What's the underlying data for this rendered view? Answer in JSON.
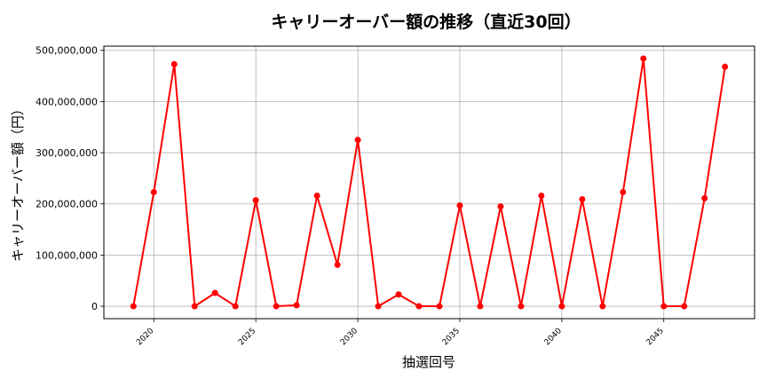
{
  "chart_data": {
    "type": "line",
    "title": "キャリーオーバー額の推移（直近30回）",
    "xlabel": "抽選回号",
    "ylabel": "キャリーオーバー額（円）",
    "x": [
      2019,
      2020,
      2021,
      2022,
      2023,
      2024,
      2025,
      2026,
      2027,
      2028,
      2029,
      2030,
      2031,
      2032,
      2033,
      2034,
      2035,
      2036,
      2037,
      2038,
      2039,
      2040,
      2041,
      2042,
      2043,
      2044,
      2045,
      2046,
      2047,
      2048
    ],
    "series": [
      {
        "color": "#ff0000",
        "values": [
          0,
          223000000,
          473000000,
          0,
          26000000,
          0,
          207000000,
          0,
          2000000,
          216000000,
          81000000,
          325000000,
          0,
          23000000,
          0,
          0,
          197000000,
          0,
          195000000,
          0,
          216000000,
          0,
          209000000,
          0,
          223000000,
          484000000,
          0,
          0,
          211000000,
          468000000
        ]
      }
    ],
    "xticks": [
      2020,
      2025,
      2030,
      2035,
      2040,
      2045
    ],
    "xtick_labels": [
      "2020",
      "2025",
      "2030",
      "2035",
      "2040",
      "2045"
    ],
    "yticks": [
      0,
      100000000,
      200000000,
      300000000,
      400000000,
      500000000
    ],
    "ytick_labels": [
      "0",
      "100,000,000",
      "200,000,000",
      "300,000,000",
      "400,000,000",
      "500,000,000"
    ],
    "xlim": [
      2017.55,
      2049.45
    ],
    "ylim": [
      -24200000,
      508200000
    ],
    "grid": true
  }
}
